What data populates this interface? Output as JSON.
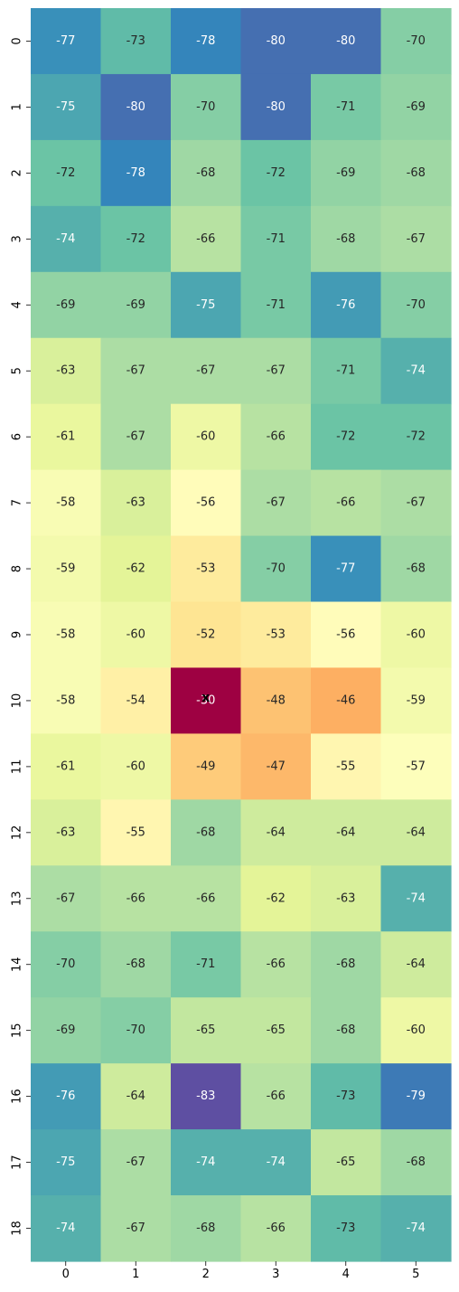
{
  "chart_data": {
    "type": "heatmap",
    "x_categories": [
      "0",
      "1",
      "2",
      "3",
      "4",
      "5"
    ],
    "y_categories": [
      "0",
      "1",
      "2",
      "3",
      "4",
      "5",
      "6",
      "7",
      "8",
      "9",
      "10",
      "11",
      "12",
      "13",
      "14",
      "15",
      "16",
      "17",
      "18"
    ],
    "values": [
      [
        -77,
        -73,
        -78,
        -80,
        -80,
        -70
      ],
      [
        -75,
        -80,
        -70,
        -80,
        -71,
        -69
      ],
      [
        -72,
        -78,
        -68,
        -72,
        -69,
        -68
      ],
      [
        -74,
        -72,
        -66,
        -71,
        -68,
        -67
      ],
      [
        -69,
        -69,
        -75,
        -71,
        -76,
        -70
      ],
      [
        -63,
        -67,
        -67,
        -67,
        -71,
        -74
      ],
      [
        -61,
        -67,
        -60,
        -66,
        -72,
        -72
      ],
      [
        -58,
        -63,
        -56,
        -67,
        -66,
        -67
      ],
      [
        -59,
        -62,
        -53,
        -70,
        -77,
        -68
      ],
      [
        -58,
        -60,
        -52,
        -53,
        -56,
        -60
      ],
      [
        -58,
        -54,
        -30,
        -48,
        -46,
        -59
      ],
      [
        -61,
        -60,
        -49,
        -47,
        -55,
        -57
      ],
      [
        -63,
        -55,
        -68,
        -64,
        -64,
        -64
      ],
      [
        -67,
        -66,
        -66,
        -62,
        -63,
        -74
      ],
      [
        -70,
        -68,
        -71,
        -66,
        -68,
        -64
      ],
      [
        -69,
        -70,
        -65,
        -65,
        -68,
        -60
      ],
      [
        -76,
        -64,
        -83,
        -66,
        -73,
        -79
      ],
      [
        -75,
        -67,
        -74,
        -74,
        -65,
        -68
      ],
      [
        -74,
        -67,
        -68,
        -66,
        -73,
        -74
      ]
    ],
    "colormap": "Spectral_r",
    "value_range": [
      -83,
      -30
    ],
    "annotate": true,
    "colorbar": false,
    "marker": {
      "label": "x",
      "x": 2.5,
      "y": 10
    },
    "title": "",
    "xlabel": "",
    "ylabel": ""
  }
}
